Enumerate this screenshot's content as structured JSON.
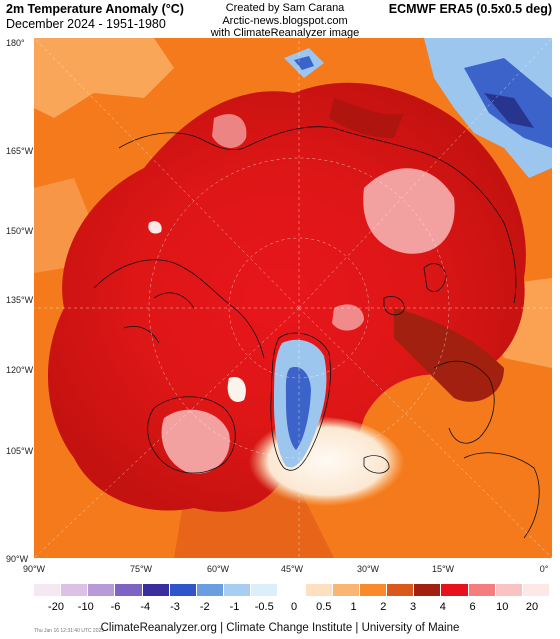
{
  "header": {
    "title": "2m Temperature Anomaly (°C)",
    "period": "December 2024 - 1951-1980",
    "credit_lines": [
      "Created by Sam Carana",
      "Arctic-news.blogspot.com",
      "with ClimateReanalyzer image"
    ],
    "dataset": "ECMWF ERA5 (0.5x0.5 deg)"
  },
  "axes": {
    "left_labels": [
      "180°",
      "165°W",
      "150°W",
      "135°W",
      "120°W",
      "105°W",
      "90°W"
    ],
    "bottom_labels": [
      "90°W",
      "75°W",
      "60°W",
      "45°W",
      "30°W",
      "15°W",
      "0°"
    ]
  },
  "legend": {
    "labels": [
      "-20",
      "-10",
      "-6",
      "-4",
      "-3",
      "-2",
      "-1",
      "-0.5",
      "0",
      "0.5",
      "1",
      "2",
      "3",
      "4",
      "6",
      "10",
      "20"
    ],
    "colors": [
      "#f6e8f3",
      "#dcc0e6",
      "#b79ad8",
      "#7e63c4",
      "#3a2d9e",
      "#2f55c8",
      "#6a9ee0",
      "#a7cdf0",
      "#dbeefa",
      "#ffffff",
      "#fde0c0",
      "#fbb573",
      "#f98a2c",
      "#d9581a",
      "#a2200f",
      "#e8101a",
      "#f57d7d",
      "#fac2c2",
      "#fde8e8"
    ]
  },
  "footer": {
    "text": "ClimateReanalyzer.org | Climate Change Institute | University of Maine",
    "small_print": "Thu Jan 16 12:31:40 UTC 2025"
  },
  "map": {
    "colors": {
      "orange": "#f57a1c",
      "light_orange": "#fbab60",
      "red": "#e51a1a",
      "dark_red": "#b0140f",
      "pink": "#f3a0a0",
      "white": "#fbf4ec",
      "light_blue": "#9cc6ee",
      "blue": "#3b63c9",
      "dark_blue": "#27358f"
    }
  }
}
